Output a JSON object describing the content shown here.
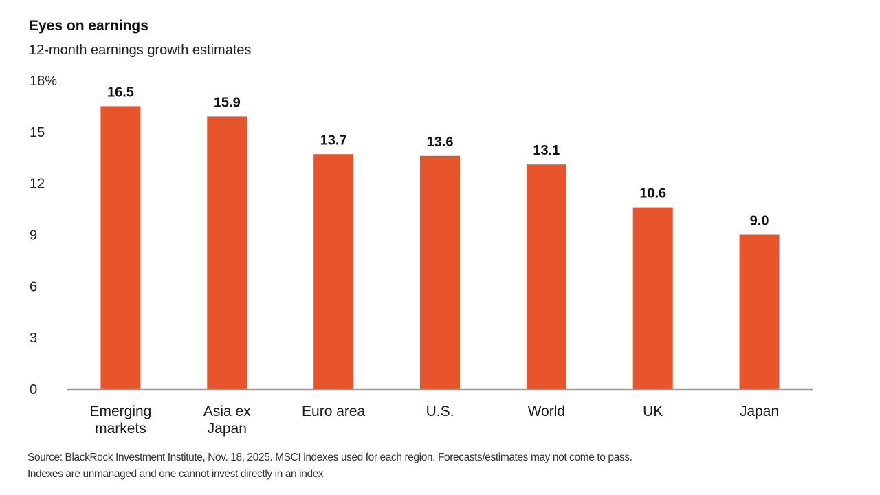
{
  "header": {
    "title": "Eyes on earnings",
    "subtitle": "12-month earnings growth estimates"
  },
  "footer": {
    "source_line1": "Source: BlackRock Investment Institute, Nov. 18, 2025. MSCI indexes used for each region. Forecasts/estimates may not come to pass.",
    "source_line2": "Indexes are unmanaged and one cannot invest directly in an index"
  },
  "colors": {
    "bar": "#E8552C",
    "axis": "#9a9a9a"
  },
  "chart_data": {
    "type": "bar",
    "title": "Eyes on earnings",
    "subtitle": "12-month earnings growth estimates",
    "categories": [
      [
        "Emerging",
        "markets"
      ],
      [
        "Asia ex",
        "Japan"
      ],
      [
        "Euro area"
      ],
      [
        "U.S."
      ],
      [
        "World"
      ],
      [
        "UK"
      ],
      [
        "Japan"
      ]
    ],
    "values": [
      16.5,
      15.9,
      13.7,
      13.6,
      13.1,
      10.6,
      9.0
    ],
    "value_labels": [
      "16.5",
      "15.9",
      "13.7",
      "13.6",
      "13.1",
      "10.6",
      "9.0"
    ],
    "y_ticks": [
      0,
      3,
      6,
      9,
      12,
      15,
      18
    ],
    "y_tick_labels": [
      "0",
      "3",
      "6",
      "9",
      "12",
      "15",
      "18%"
    ],
    "ylim": [
      0,
      18
    ],
    "xlabel": "",
    "ylabel": "",
    "grid": false,
    "legend": "none"
  }
}
